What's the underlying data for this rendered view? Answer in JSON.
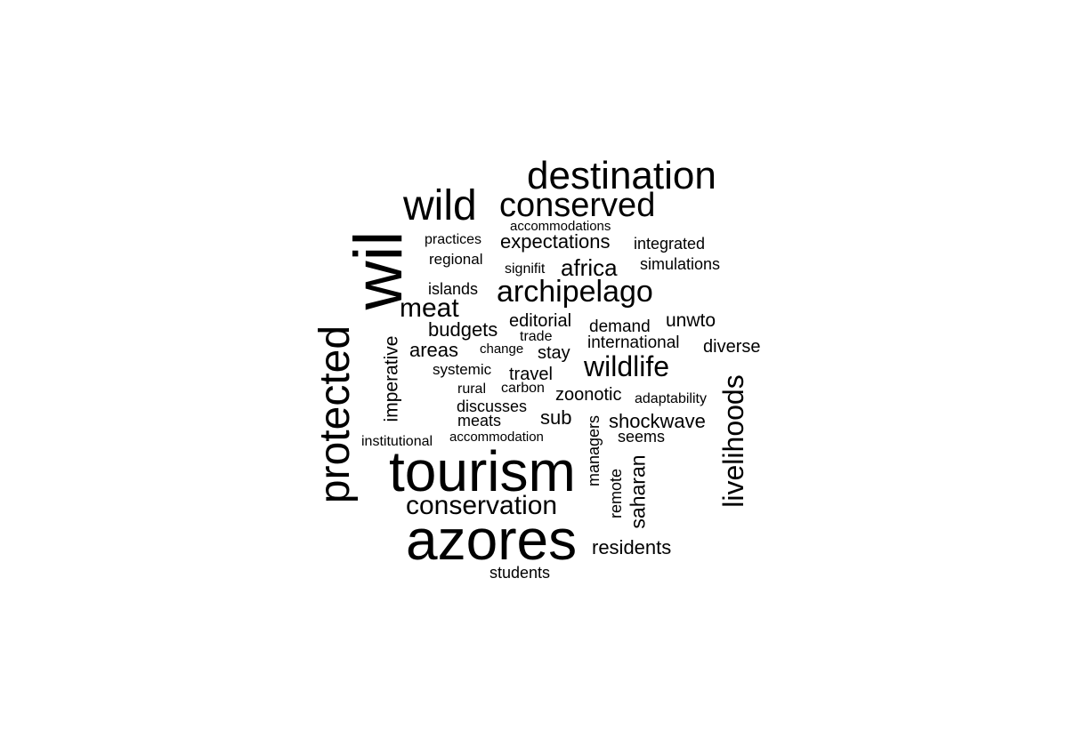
{
  "word_cloud": {
    "text_color": "#000000",
    "background_color": "#ffffff",
    "words": {
      "destination": "destination",
      "wild": "wild",
      "conserved": "conserved",
      "accommodations": "accommodations",
      "practices": "practices",
      "expectations": "expectations",
      "integrated": "integrated",
      "regional": "regional",
      "signifit": "signifit",
      "africa": "africa",
      "simulations": "simulations",
      "wil": "wil",
      "islands": "islands",
      "archipelago": "archipelago",
      "meat": "meat",
      "editorial": "editorial",
      "demand": "demand",
      "unwto": "unwto",
      "budgets": "budgets",
      "trade": "trade",
      "international": "international",
      "areas": "areas",
      "change": "change",
      "stay": "stay",
      "diverse": "diverse",
      "protected": "protected",
      "imperative": "imperative",
      "systemic": "systemic",
      "travel": "travel",
      "wildlife": "wildlife",
      "rural": "rural",
      "carbon": "carbon",
      "zoonotic": "zoonotic",
      "adaptability": "adaptability",
      "livelihoods": "livelihoods",
      "discusses": "discusses",
      "meats": "meats",
      "sub": "sub",
      "shockwave": "shockwave",
      "managers": "managers",
      "institutional": "institutional",
      "accommodation": "accommodation",
      "seems": "seems",
      "tourism": "tourism",
      "remote": "remote",
      "saharan": "saharan",
      "conservation": "conservation",
      "azores": "azores",
      "residents": "residents",
      "students": "students"
    }
  }
}
